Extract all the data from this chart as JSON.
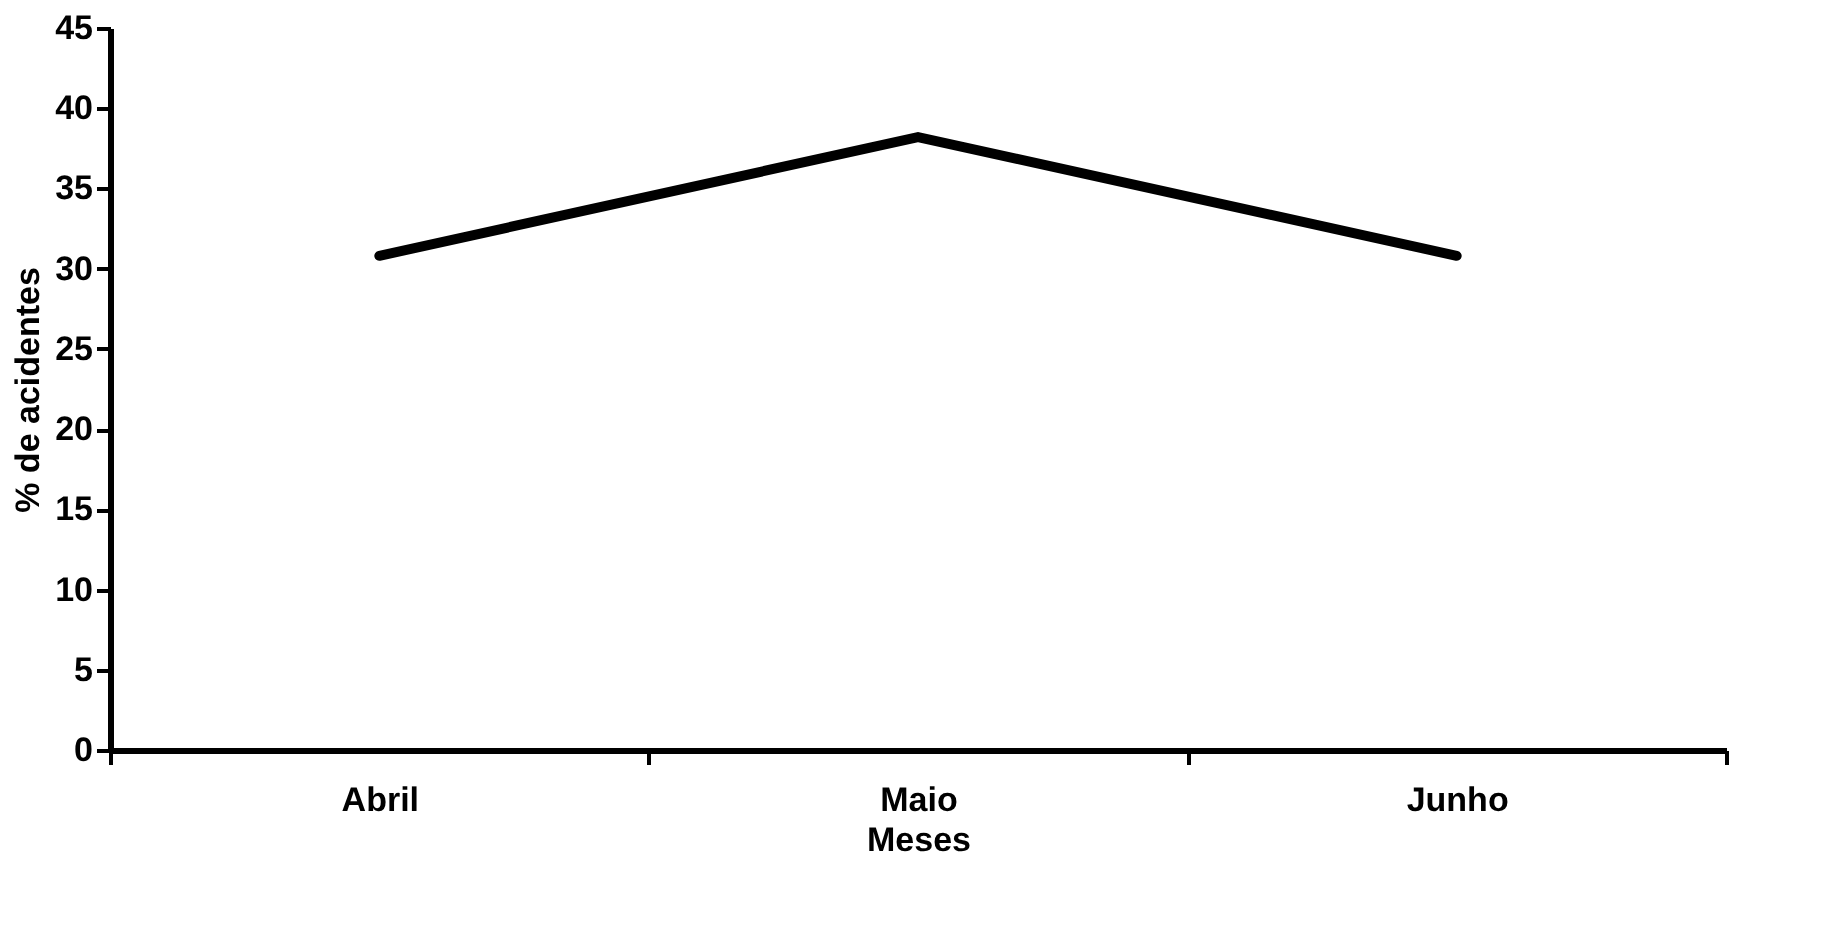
{
  "chart_data": {
    "type": "line",
    "xlabel": "Meses",
    "ylabel": "% de acidentes",
    "categories": [
      "Abril",
      "Maio",
      "Junho"
    ],
    "series": [
      {
        "color": "#000000",
        "values": [
          30.8,
          38.2,
          30.8
        ]
      }
    ],
    "ylim": [
      0,
      45
    ],
    "yticks": [
      0,
      5,
      10,
      15,
      20,
      25,
      30,
      35,
      40,
      45
    ],
    "grid": false,
    "legend": false,
    "marker": "none",
    "line_style": "solid"
  }
}
